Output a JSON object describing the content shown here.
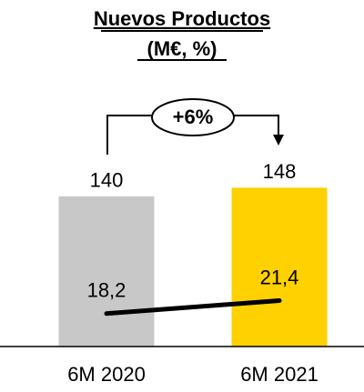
{
  "chart_data": {
    "type": "bar",
    "title": "Nuevos Productos",
    "subtitle": "(M€, %)",
    "annotation": "+6%",
    "categories": [
      "6M 2020",
      "6M 2021"
    ],
    "series": [
      {
        "type": "bar",
        "values": [
          140,
          148
        ],
        "colors": [
          "#c8c8c8",
          "#ffd100"
        ]
      },
      {
        "type": "line",
        "axis": "y2",
        "color": "#000000",
        "values": [
          18.2,
          21.4
        ],
        "value_labels": [
          "18,2",
          "21,4"
        ]
      }
    ],
    "ylim": [
      0,
      150
    ],
    "y2lim": [
      10,
      50
    ]
  }
}
